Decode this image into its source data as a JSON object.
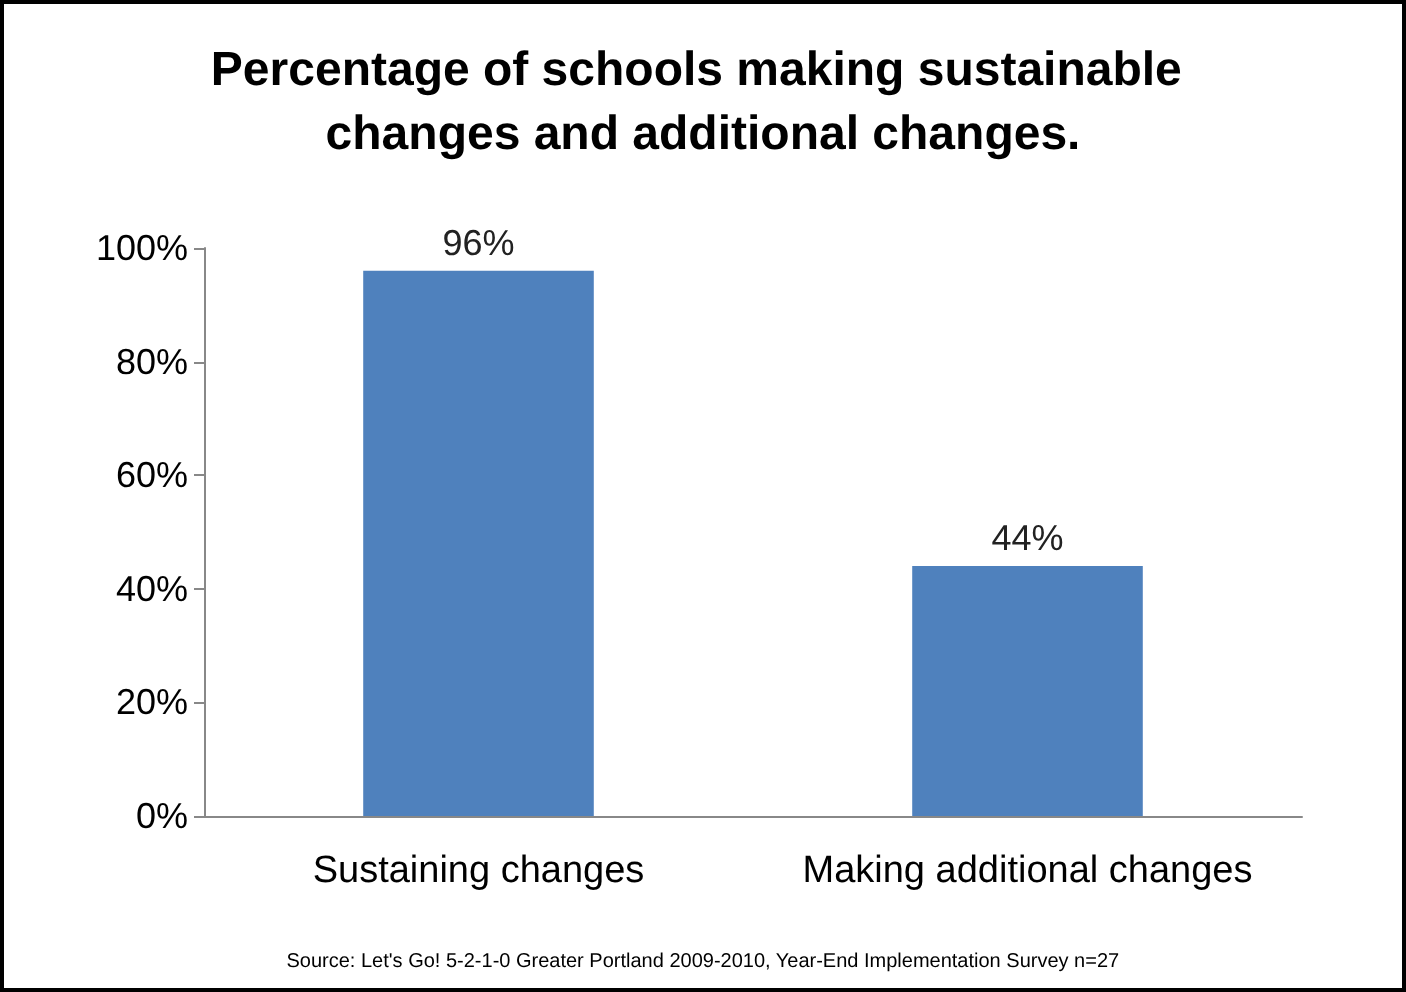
{
  "chart_data": {
    "type": "bar",
    "title": "Percentage of schools making sustainable changes and additional changes.",
    "categories": [
      "Sustaining changes",
      "Making additional changes"
    ],
    "values": [
      96,
      44
    ],
    "color": "#4f81bd",
    "value_labels": [
      "96%",
      "44%"
    ],
    "ylim": [
      0,
      100
    ],
    "yticks": [
      {
        "value": 0,
        "label": "0%"
      },
      {
        "value": 20,
        "label": "20%"
      },
      {
        "value": 40,
        "label": "40%"
      },
      {
        "value": 60,
        "label": "60%"
      },
      {
        "value": 80,
        "label": "80%"
      },
      {
        "value": 100,
        "label": "100%"
      }
    ],
    "annotations": [
      "Source: Let's Go! 5-2-1-0 Greater Portland 2009-2010, Year-End Implementation Survey n=27"
    ]
  }
}
